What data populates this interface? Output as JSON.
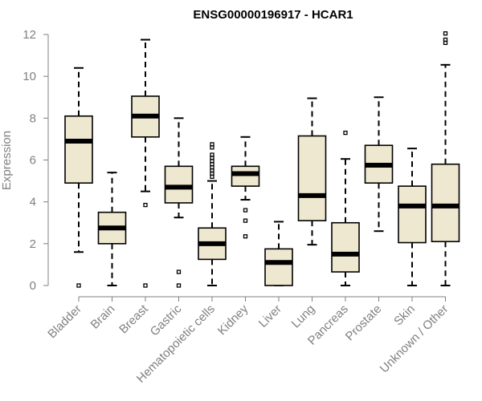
{
  "chart_data": {
    "type": "boxplot",
    "title": "ENSG00000196917 - HCAR1",
    "xlabel": "",
    "ylabel": "Expression",
    "ylim": [
      0,
      12
    ],
    "yticks": [
      0,
      2,
      4,
      6,
      8,
      10,
      12
    ],
    "grid": false,
    "colors": {
      "box_fill": "#efe8d0",
      "axis_text": "#808080",
      "stroke": "#000000"
    },
    "categories": [
      "Bladder",
      "Brain",
      "Breast",
      "Gastric",
      "Hematopoietic cells",
      "Kidney",
      "Liver",
      "Lung",
      "Pancreas",
      "Prostate",
      "Skin",
      "Unknown / Other"
    ],
    "boxes": [
      {
        "category": "Bladder",
        "min": 1.6,
        "q1": 4.9,
        "median": 6.9,
        "q3": 8.1,
        "max": 10.4,
        "outliers": [
          0
        ]
      },
      {
        "category": "Brain",
        "min": 0,
        "q1": 2.0,
        "median": 2.75,
        "q3": 3.5,
        "max": 5.4,
        "outliers": []
      },
      {
        "category": "Breast",
        "min": 4.5,
        "q1": 7.1,
        "median": 8.1,
        "q3": 9.05,
        "max": 11.75,
        "outliers": [
          3.85,
          0
        ]
      },
      {
        "category": "Gastric",
        "min": 3.25,
        "q1": 3.95,
        "median": 4.7,
        "q3": 5.7,
        "max": 8.0,
        "outliers": [
          0.65,
          0
        ]
      },
      {
        "category": "Hematopoietic cells",
        "min": 0,
        "q1": 1.25,
        "median": 2.0,
        "q3": 2.75,
        "max": 5.0,
        "outliers": [
          5.2,
          5.35,
          5.5,
          5.65,
          5.8,
          5.95,
          6.1,
          6.25,
          6.6,
          6.75
        ]
      },
      {
        "category": "Kidney",
        "min": 4.1,
        "q1": 4.75,
        "median": 5.35,
        "q3": 5.7,
        "max": 7.1,
        "outliers": [
          3.6,
          3.1,
          2.35
        ]
      },
      {
        "category": "Liver",
        "min": 0,
        "q1": 0,
        "median": 1.1,
        "q3": 1.75,
        "max": 3.05,
        "outliers": []
      },
      {
        "category": "Lung",
        "min": 1.95,
        "q1": 3.1,
        "median": 4.3,
        "q3": 7.15,
        "max": 8.95,
        "outliers": []
      },
      {
        "category": "Pancreas",
        "min": 0,
        "q1": 0.65,
        "median": 1.5,
        "q3": 3.0,
        "max": 6.05,
        "outliers": [
          7.3
        ]
      },
      {
        "category": "Prostate",
        "min": 2.6,
        "q1": 4.9,
        "median": 5.75,
        "q3": 6.7,
        "max": 9.0,
        "outliers": []
      },
      {
        "category": "Skin",
        "min": 0,
        "q1": 2.05,
        "median": 3.8,
        "q3": 4.75,
        "max": 6.55,
        "outliers": []
      },
      {
        "category": "Unknown / Other",
        "min": 0,
        "q1": 2.1,
        "median": 3.8,
        "q3": 5.8,
        "max": 10.55,
        "outliers": [
          11.6,
          11.75,
          12.05
        ]
      }
    ]
  }
}
